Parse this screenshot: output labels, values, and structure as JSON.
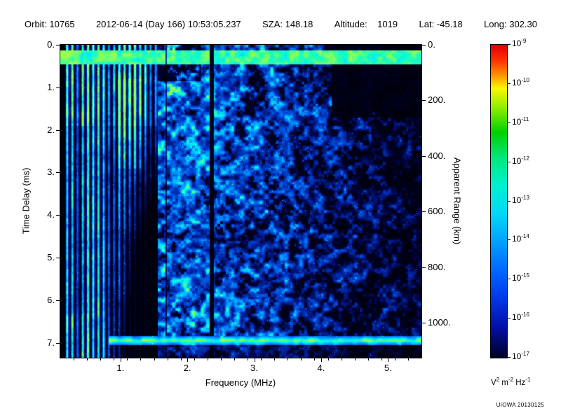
{
  "header": {
    "fields": [
      "Orbit: 10765",
      "2012-06-14 (Day 166) 10:53:05.237",
      "SZA: 148.18",
      "Altitude:    1019",
      "Lat: -45.18",
      "Long: 302.30"
    ]
  },
  "footer": {
    "watermark": "UIOWA 20130125"
  },
  "chart_data": {
    "type": "heatmap",
    "xlabel": "Frequency (MHz)",
    "ylabel_left": "Time Delay (ms)",
    "ylabel_right": "Apparent Range (km)",
    "x_range_mhz": [
      0.1,
      5.5
    ],
    "y_range_ms": [
      0,
      7.35
    ],
    "right_range_km": [
      0,
      1126
    ],
    "x_ticks": [
      {
        "v": 1,
        "label": "1."
      },
      {
        "v": 2,
        "label": "2."
      },
      {
        "v": 3,
        "label": "3."
      },
      {
        "v": 4,
        "label": "4."
      },
      {
        "v": 5,
        "label": "5."
      }
    ],
    "x_minor_step_mhz": 0.2,
    "y_ticks": [
      {
        "v": 0,
        "label": "0."
      },
      {
        "v": 1,
        "label": "1."
      },
      {
        "v": 2,
        "label": "2."
      },
      {
        "v": 3,
        "label": "3."
      },
      {
        "v": 4,
        "label": "4."
      },
      {
        "v": 5,
        "label": "5."
      },
      {
        "v": 6,
        "label": "6."
      },
      {
        "v": 7,
        "label": "7."
      }
    ],
    "right_ticks": [
      {
        "v": 0,
        "label": "0."
      },
      {
        "v": 200,
        "label": "200."
      },
      {
        "v": 400,
        "label": "400."
      },
      {
        "v": 600,
        "label": "600."
      },
      {
        "v": 800,
        "label": "800."
      },
      {
        "v": 1000,
        "label": "1000."
      }
    ],
    "colorbar": {
      "exponents": [
        "-9",
        "-10",
        "-11",
        "-12",
        "-13",
        "-14",
        "-15",
        "-16",
        "-17"
      ],
      "unit_parts": [
        {
          "b": "V",
          "e": "2"
        },
        {
          "b": "m",
          "e": "-2"
        },
        {
          "b": "Hz",
          "e": "-1"
        }
      ],
      "stops": [
        {
          "p": 0.0,
          "c": "#e00000"
        },
        {
          "p": 0.05,
          "c": "#ff3000"
        },
        {
          "p": 0.1,
          "c": "#ff9800"
        },
        {
          "p": 0.14,
          "c": "#f8f800"
        },
        {
          "p": 0.2,
          "c": "#90ee00"
        },
        {
          "p": 0.28,
          "c": "#00d000"
        },
        {
          "p": 0.36,
          "c": "#00e87a"
        },
        {
          "p": 0.45,
          "c": "#00f0d0"
        },
        {
          "p": 0.54,
          "c": "#00d8f8"
        },
        {
          "p": 0.63,
          "c": "#00a0ff"
        },
        {
          "p": 0.72,
          "c": "#0068ff"
        },
        {
          "p": 0.81,
          "c": "#0038e8"
        },
        {
          "p": 0.9,
          "c": "#0010a8"
        },
        {
          "p": 1.0,
          "c": "#000028"
        }
      ]
    },
    "features": {
      "seed": 7,
      "ionosphere_band": {
        "delay_ms": [
          0.12,
          0.45
        ]
      },
      "plasma_stripes": {
        "freq_max_mhz": 1.55,
        "spacing_mhz": 0.078
      },
      "surface_echo": {
        "delay_ms": [
          6.84,
          7.04
        ],
        "freq_min_mhz": 0.82
      },
      "dark_gap_mhz": 2.36
    }
  }
}
